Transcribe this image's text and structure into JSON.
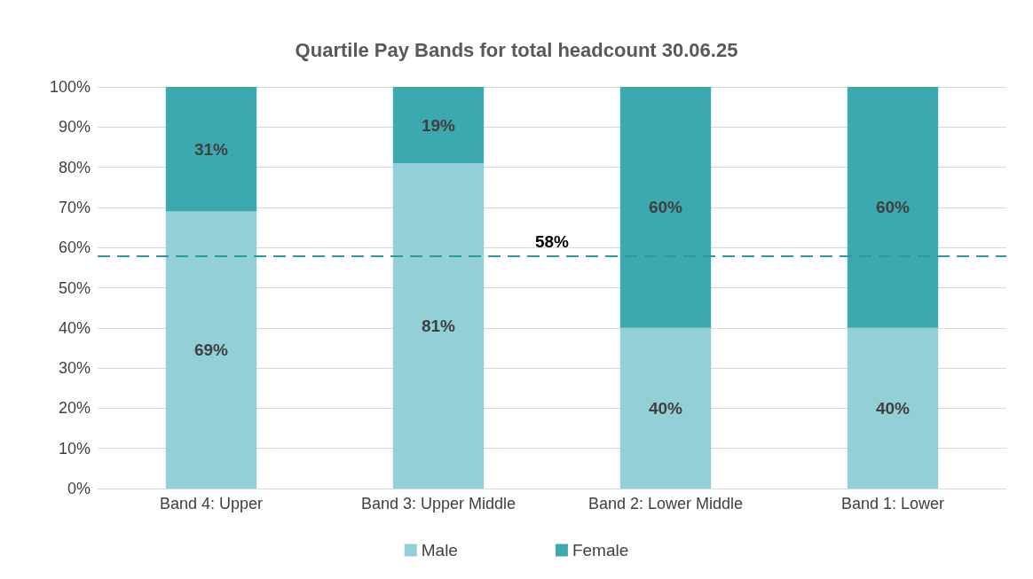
{
  "chart_data": {
    "type": "bar",
    "title": "Quartile Pay Bands for total headcount 30.06.25",
    "categories": [
      "Band 4: Upper",
      "Band 3: Upper Middle",
      "Band 2: Lower Middle",
      "Band 1: Lower"
    ],
    "stacked": true,
    "series": [
      {
        "name": "Male",
        "color": "#92cfd6",
        "values": [
          69,
          81,
          40,
          40
        ],
        "value_labels": [
          "69%",
          "81%",
          "40%",
          "40%"
        ]
      },
      {
        "name": "Female",
        "color": "#3ca8b0",
        "values": [
          31,
          19,
          60,
          60
        ],
        "value_labels": [
          "31%",
          "19%",
          "60%",
          "60%"
        ]
      }
    ],
    "ylim": [
      0,
      100
    ],
    "yticks": [
      {
        "value": 0,
        "label": "0%"
      },
      {
        "value": 10,
        "label": "10%"
      },
      {
        "value": 20,
        "label": "20%"
      },
      {
        "value": 30,
        "label": "30%"
      },
      {
        "value": 40,
        "label": "40%"
      },
      {
        "value": 50,
        "label": "50%"
      },
      {
        "value": 60,
        "label": "60%"
      },
      {
        "value": 70,
        "label": "70%"
      },
      {
        "value": 80,
        "label": "80%"
      },
      {
        "value": 90,
        "label": "90%"
      },
      {
        "value": 100,
        "label": "100%"
      }
    ],
    "ref_lines": [
      {
        "axis": "y",
        "value": 58,
        "label": "58%",
        "color": "#2a9a9e",
        "line_style": "dashed"
      }
    ],
    "grid": "y",
    "legend": "bottom"
  }
}
